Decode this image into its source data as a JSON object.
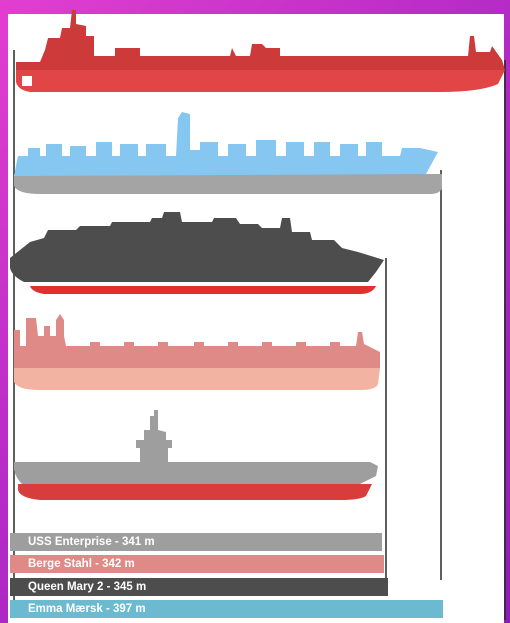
{
  "legend": [
    {
      "label": "USS Enterprise - 341 m",
      "color": "#9e9e9e",
      "length_m": 341
    },
    {
      "label": "Berge Stahl - 342 m",
      "color": "#df8a86",
      "length_m": 342
    },
    {
      "label": "Queen Mary 2 - 345 m",
      "color": "#4d4d4d",
      "length_m": 345
    },
    {
      "label": "Emma Mærsk - 397 m",
      "color": "#6bbad0",
      "length_m": 397
    }
  ],
  "ships": [
    {
      "name": "oil-tanker",
      "hull_color": "#e24545",
      "superstructure_color": "#cc3a3a"
    },
    {
      "name": "container-ship",
      "hull_color": "#a4a4a4",
      "superstructure_color": "#86c7f2"
    },
    {
      "name": "cruise-liner",
      "hull_color": "#e03030",
      "superstructure_color": "#4d4d4d"
    },
    {
      "name": "bulk-carrier",
      "hull_color": "#f2b3a3",
      "superstructure_color": "#df8a86"
    },
    {
      "name": "aircraft-carrier",
      "hull_color": "#d83c3c",
      "superstructure_color": "#9e9e9e"
    }
  ]
}
